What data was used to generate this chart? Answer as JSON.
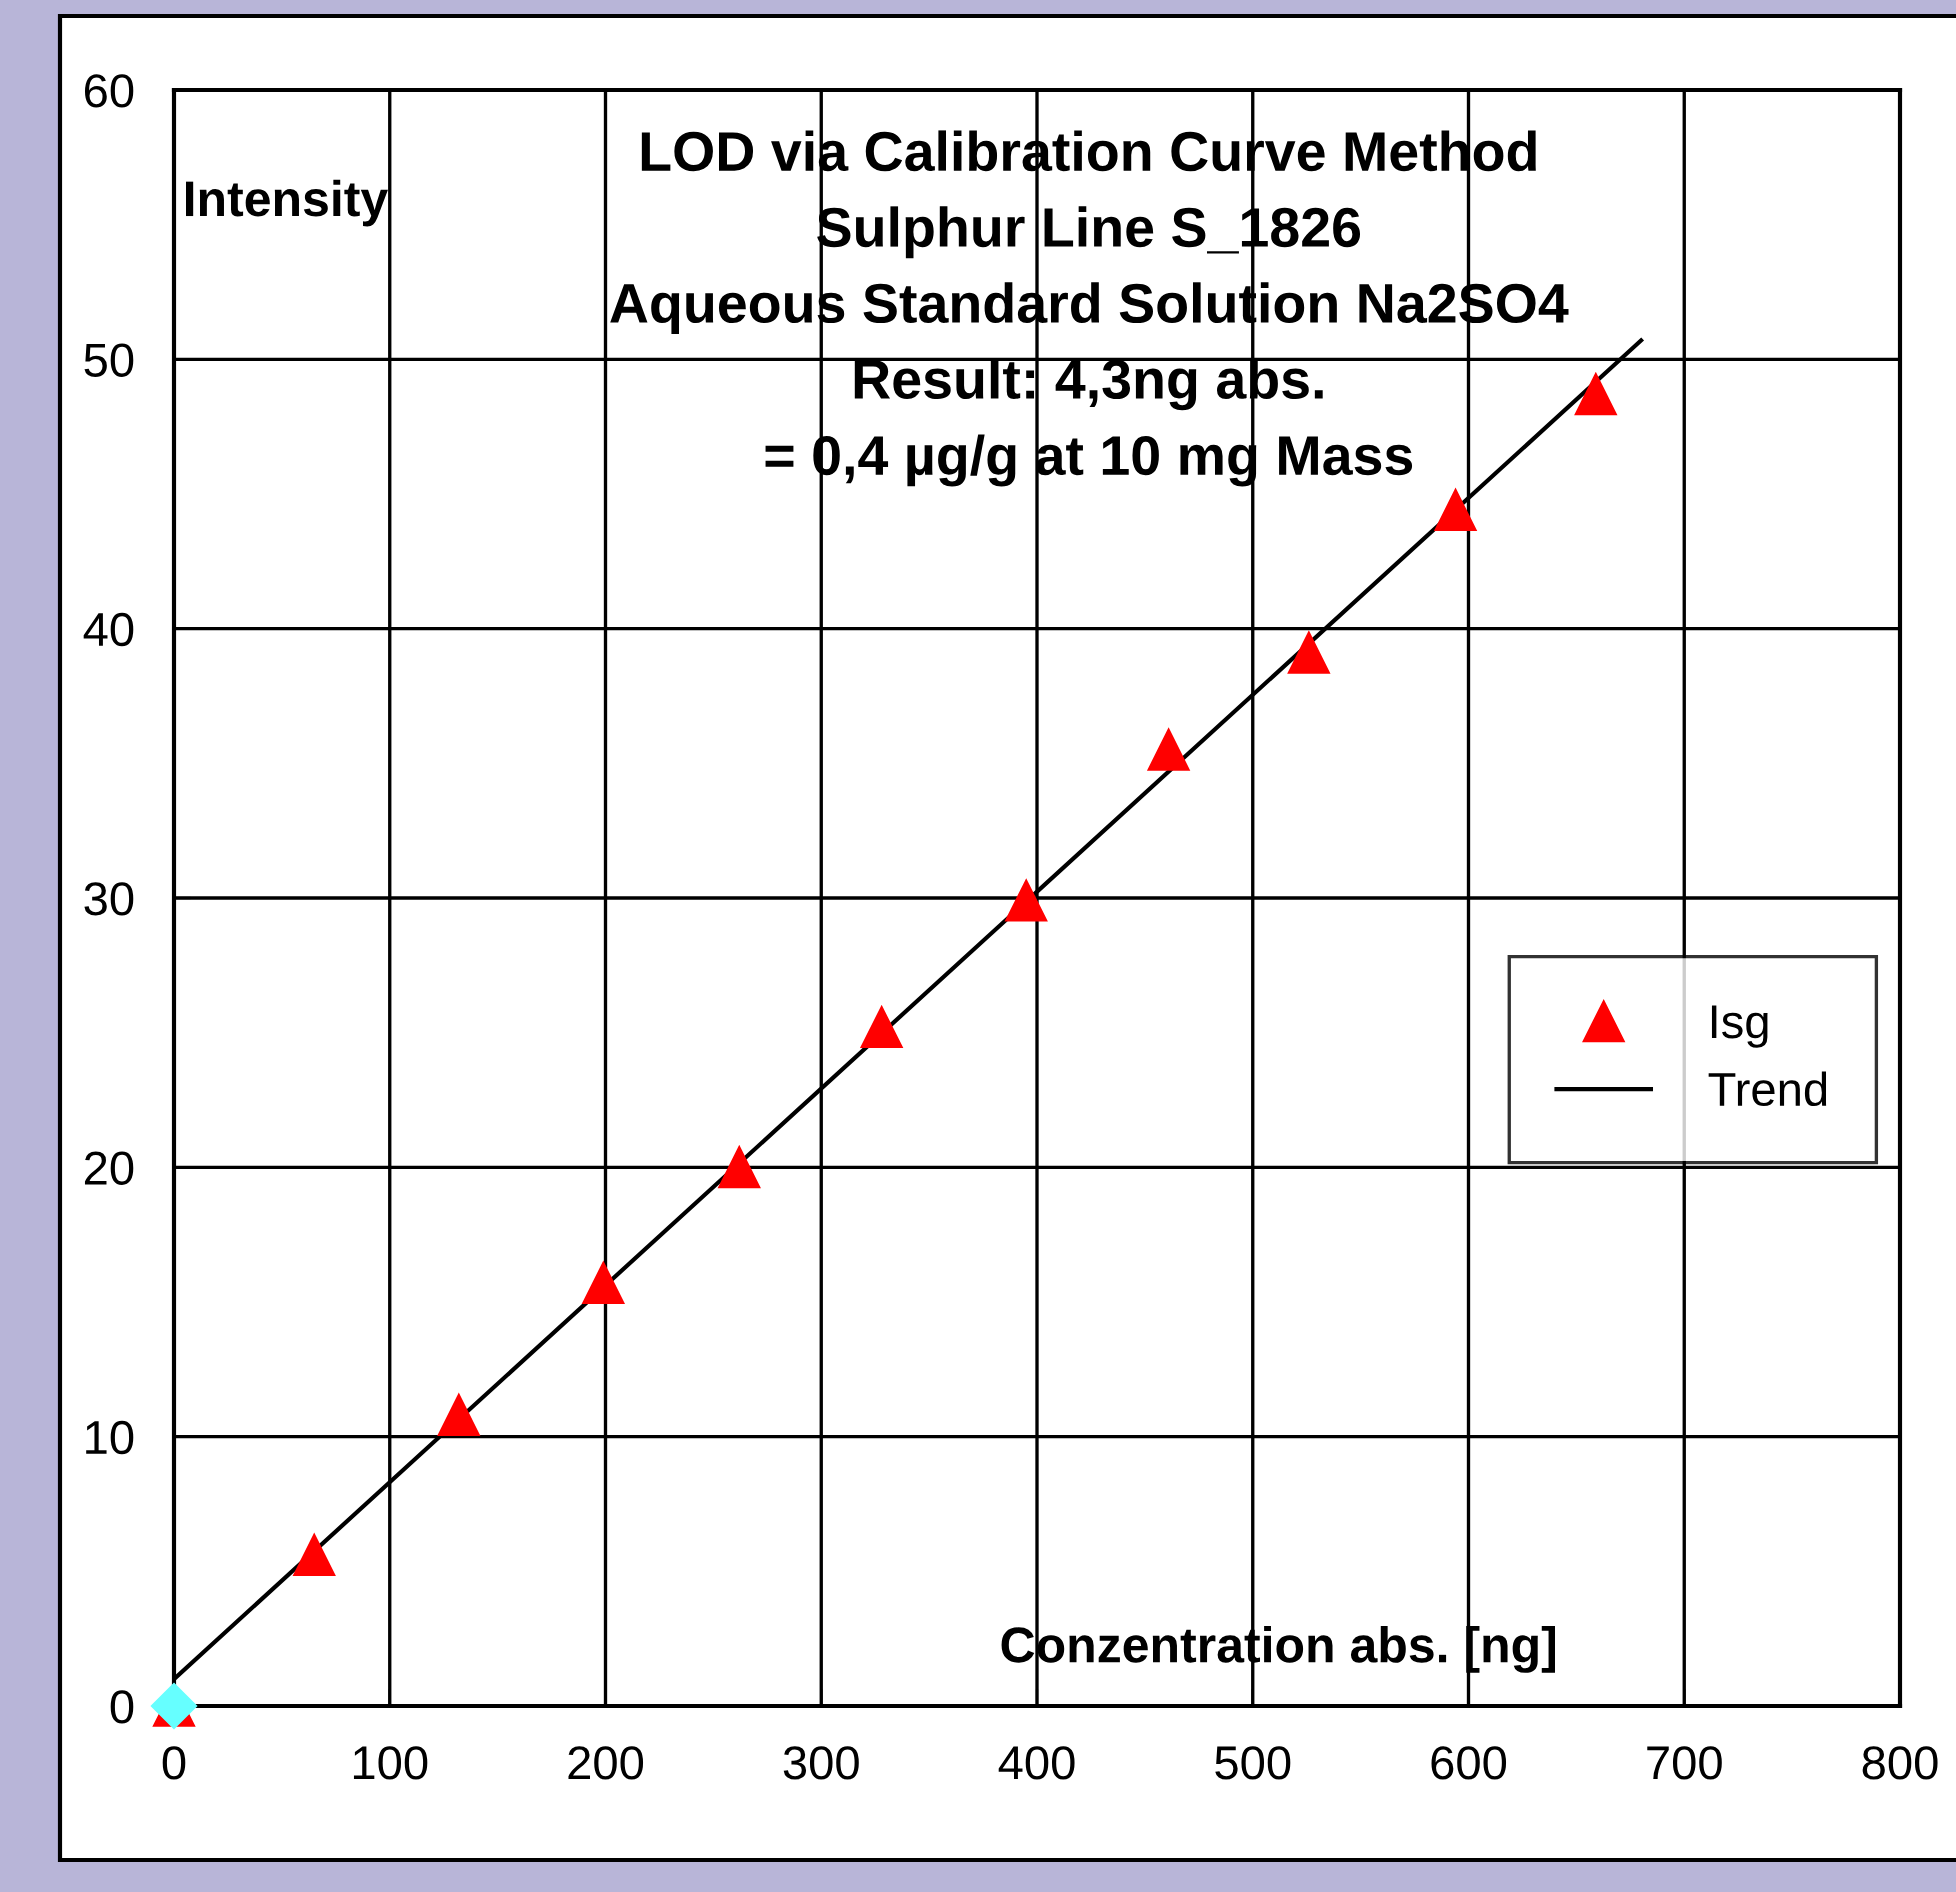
{
  "chart_data": {
    "type": "scatter",
    "title": "LOD via Calibration Curve Method\nSulphur Line S_1826\nAqueous Standard Solution Na2SO4\nResult: 4,3ng abs.\n= 0,4 µg/g at 10 mg Mass",
    "xlabel": "Conzentration abs. [ng]",
    "ylabel": "Intensity",
    "series": [
      {
        "name": "Isg",
        "color": "#ff0000",
        "marker": "triangle",
        "x": [
          0,
          65,
          132,
          199,
          262,
          328,
          395,
          461,
          526,
          594,
          659
        ],
        "values": [
          0,
          5.6,
          10.8,
          15.7,
          20.0,
          25.2,
          29.9,
          35.5,
          39.1,
          44.4,
          48.7
        ]
      },
      {
        "name": "Trend",
        "type": "line",
        "color": "#000000",
        "marker": "none",
        "x": [
          0,
          680
        ],
        "values": [
          1.0,
          50.7
        ]
      },
      {
        "color": "#66ffff",
        "marker": "diamond",
        "x": [
          0
        ],
        "values": [
          0
        ]
      }
    ],
    "xlim": [
      0,
      800
    ],
    "xticks": [
      0,
      100,
      200,
      300,
      400,
      500,
      600,
      700,
      800
    ],
    "ylim": [
      0,
      60
    ],
    "yticks": [
      0,
      10,
      20,
      30,
      40,
      50,
      60
    ],
    "grid": true,
    "legend": "right"
  }
}
